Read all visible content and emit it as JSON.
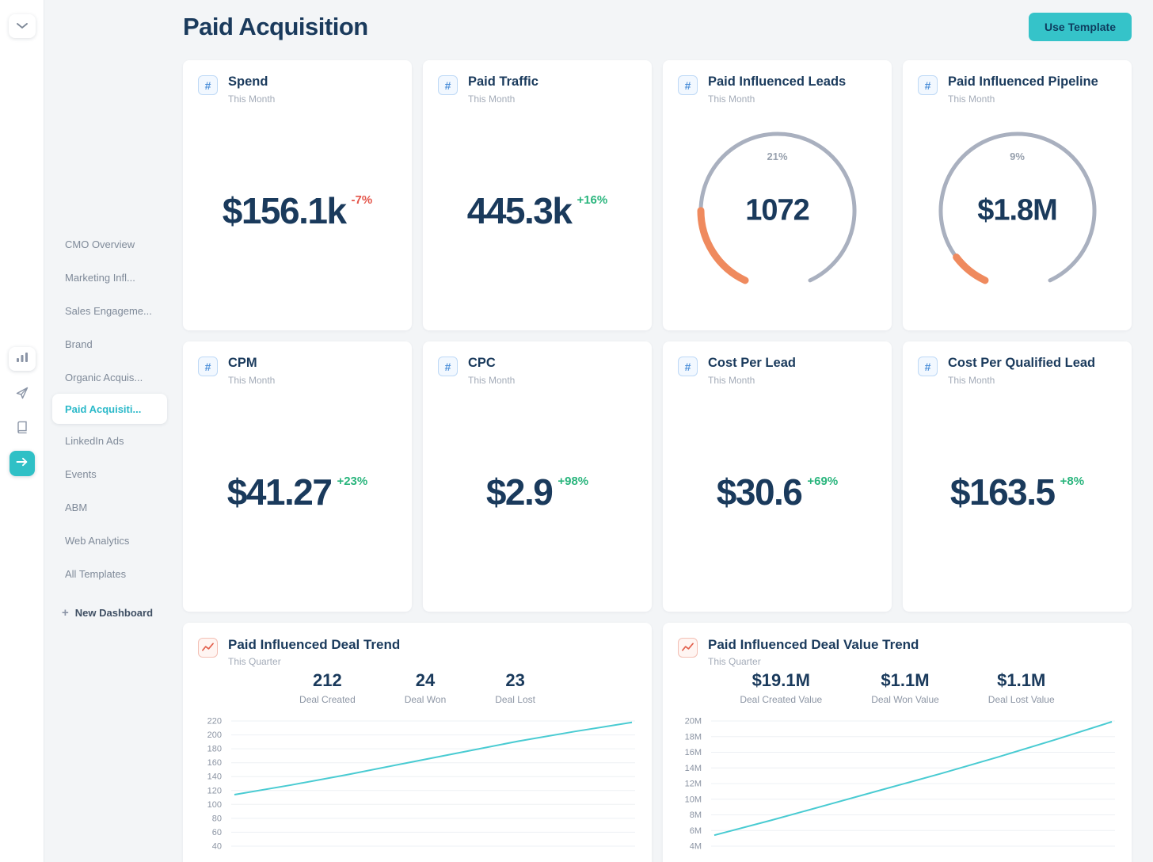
{
  "colors": {
    "accent_teal": "#35c3c9",
    "navy": "#1a3a5c",
    "positive_green": "#2ab57d",
    "negative_red": "#e4564b",
    "gauge_orange": "#ef8a5e",
    "gauge_gray": "#a9b0bf",
    "line_teal": "#49cbd2",
    "icon_blue": "#4e90d9",
    "icon_red": "#e2604d"
  },
  "rail": {
    "icons": [
      "chevron-down-icon",
      "bar-chart-icon",
      "send-icon",
      "book-icon",
      "arrow-right-icon"
    ]
  },
  "nav": {
    "items": [
      {
        "label": "CMO Overview",
        "active": false
      },
      {
        "label": "Marketing Infl...",
        "active": false
      },
      {
        "label": "Sales Engageme...",
        "active": false
      },
      {
        "label": "Brand",
        "active": false
      },
      {
        "label": "Organic Acquis...",
        "active": false
      },
      {
        "label": "Paid Acquisiti...",
        "active": true
      },
      {
        "label": "LinkedIn Ads",
        "active": false
      },
      {
        "label": "Events",
        "active": false
      },
      {
        "label": "ABM",
        "active": false
      },
      {
        "label": "Web Analytics",
        "active": false
      },
      {
        "label": "All Templates",
        "active": false
      }
    ],
    "new_dashboard_label": "New Dashboard"
  },
  "header": {
    "title": "Paid Acquisition",
    "use_template_label": "Use Template"
  },
  "stat_cards": [
    {
      "title": "Spend",
      "period": "This Month",
      "value": "$156.1k",
      "delta": "-7%"
    },
    {
      "title": "Paid Traffic",
      "period": "This Month",
      "value": "445.3k",
      "delta": "+16%"
    },
    {
      "title": "CPM",
      "period": "This Month",
      "value": "$41.27",
      "delta": "+23%"
    },
    {
      "title": "CPC",
      "period": "This Month",
      "value": "$2.9",
      "delta": "+98%"
    },
    {
      "title": "Cost Per Lead",
      "period": "This Month",
      "value": "$30.6",
      "delta": "+69%"
    },
    {
      "title": "Cost Per Qualified Lead",
      "period": "This Month",
      "value": "$163.5",
      "delta": "+8%"
    }
  ],
  "gauge_cards": [
    {
      "title": "Paid Influenced Leads",
      "period": "This Month",
      "percent_label": "21%",
      "percent": 21,
      "value": "1072"
    },
    {
      "title": "Paid Influenced Pipeline",
      "period": "This Month",
      "percent_label": "9%",
      "percent": 9,
      "value": "$1.8M"
    }
  ],
  "trend_cards": [
    {
      "title": "Paid Influenced Deal Trend",
      "period": "This Quarter",
      "stats": [
        {
          "value": "212",
          "label": "Deal Created"
        },
        {
          "value": "24",
          "label": "Deal Won"
        },
        {
          "value": "23",
          "label": "Deal Lost"
        }
      ],
      "chart_data": {
        "type": "line",
        "ylabels": [
          "220",
          "200",
          "180",
          "160",
          "140",
          "120",
          "100",
          "80",
          "60",
          "40"
        ],
        "ymin": 40,
        "ymax": 220,
        "values": [
          114,
          128,
          143,
          159,
          175,
          191,
          205,
          218
        ]
      }
    },
    {
      "title": "Paid Influenced Deal Value Trend",
      "period": "This Quarter",
      "stats": [
        {
          "value": "$19.1M",
          "label": "Deal Created Value"
        },
        {
          "value": "$1.1M",
          "label": "Deal Won Value"
        },
        {
          "value": "$1.1M",
          "label": "Deal Lost Value"
        }
      ],
      "chart_data": {
        "type": "line",
        "ylabels": [
          "20M",
          "18M",
          "16M",
          "14M",
          "12M",
          "10M",
          "8M",
          "6M",
          "4M"
        ],
        "ymin": 4,
        "ymax": 20,
        "values": [
          5.4,
          7.3,
          9.3,
          11.3,
          13.3,
          15.4,
          17.6,
          19.9
        ]
      }
    }
  ]
}
